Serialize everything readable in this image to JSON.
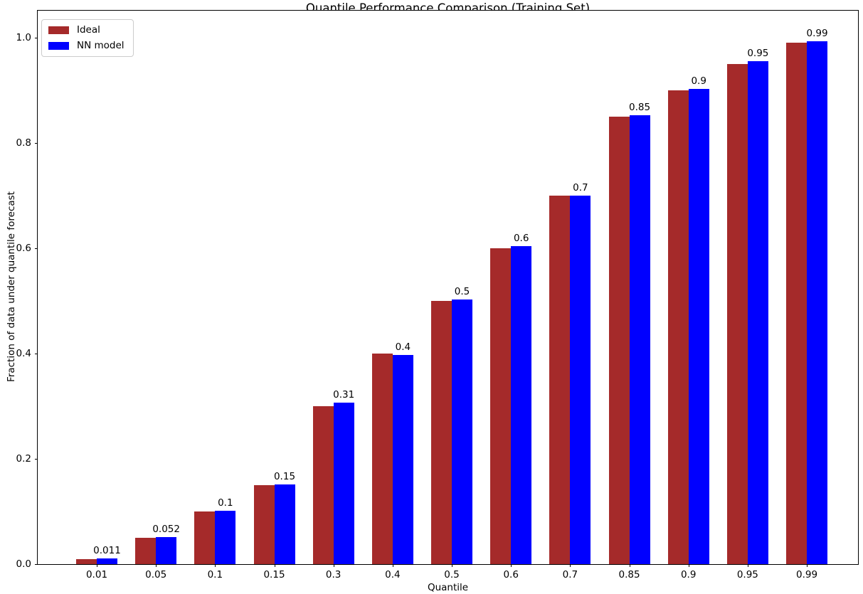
{
  "chart_data": {
    "type": "bar",
    "title": "Quantile Performance Comparison (Training Set)",
    "xlabel": "Quantile",
    "ylabel": "Fraction of data under quantile forecast",
    "categories": [
      "0.01",
      "0.05",
      "0.1",
      "0.15",
      "0.3",
      "0.4",
      "0.5",
      "0.6",
      "0.7",
      "0.85",
      "0.9",
      "0.95",
      "0.99"
    ],
    "series": [
      {
        "name": "Ideal",
        "color": "#a52a2a",
        "values": [
          0.01,
          0.05,
          0.1,
          0.15,
          0.3,
          0.4,
          0.5,
          0.6,
          0.7,
          0.85,
          0.9,
          0.95,
          0.99
        ]
      },
      {
        "name": "NN model",
        "color": "#0000ff",
        "values": [
          0.011,
          0.052,
          0.101,
          0.152,
          0.307,
          0.397,
          0.503,
          0.604,
          0.7,
          0.853,
          0.903,
          0.955,
          0.993
        ],
        "labels": [
          "0.011",
          "0.052",
          "0.1",
          "0.15",
          "0.31",
          "0.4",
          "0.5",
          "0.6",
          "0.7",
          "0.85",
          "0.9",
          "0.95",
          "0.99"
        ]
      }
    ],
    "yticks": [
      0.0,
      0.2,
      0.4,
      0.6,
      0.8,
      1.0
    ],
    "ytick_labels": [
      "0.0",
      "0.2",
      "0.4",
      "0.6",
      "0.8",
      "1.0"
    ],
    "ylim": [
      0,
      1.0514
    ],
    "grid": false,
    "legend_position": "upper left",
    "bar_label_series": "NN model"
  }
}
